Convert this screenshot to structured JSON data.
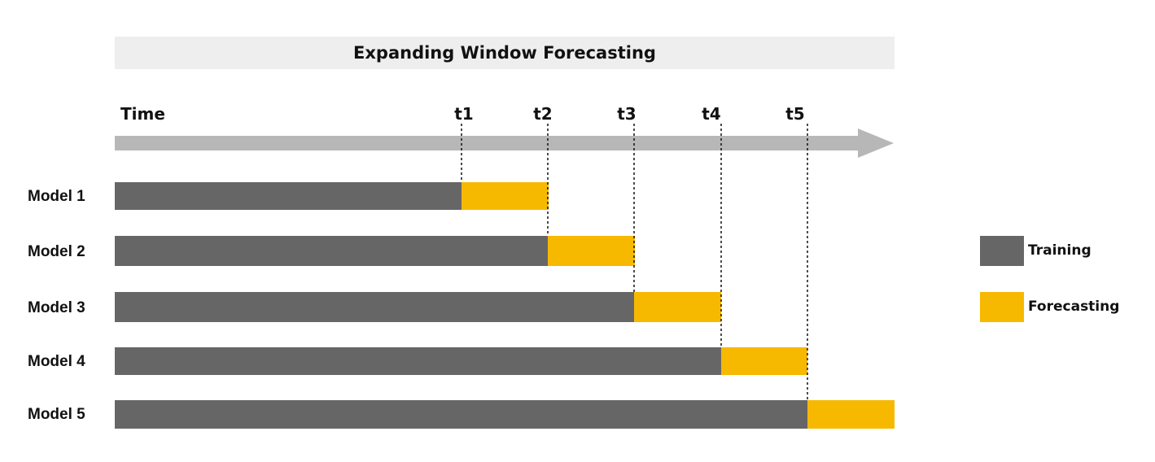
{
  "title": "Expanding Window Forecasting",
  "axis": {
    "label": "Time",
    "ticks": [
      "t1",
      "t2",
      "t3",
      "t4",
      "t5"
    ]
  },
  "models": [
    {
      "label": "Model 1",
      "training_end": "t1",
      "forecast_end": "t2"
    },
    {
      "label": "Model 2",
      "training_end": "t2",
      "forecast_end": "t3"
    },
    {
      "label": "Model 3",
      "training_end": "t3",
      "forecast_end": "t4"
    },
    {
      "label": "Model 4",
      "training_end": "t4",
      "forecast_end": "t5"
    },
    {
      "label": "Model 5",
      "training_end": "t5",
      "forecast_end": "end"
    }
  ],
  "legend": {
    "training": "Training",
    "forecasting": "Forecasting"
  },
  "colors": {
    "training": "#666666",
    "forecasting": "#f7b800",
    "axis_arrow": "#b7b7b7",
    "title_background": "#eeeeee"
  }
}
